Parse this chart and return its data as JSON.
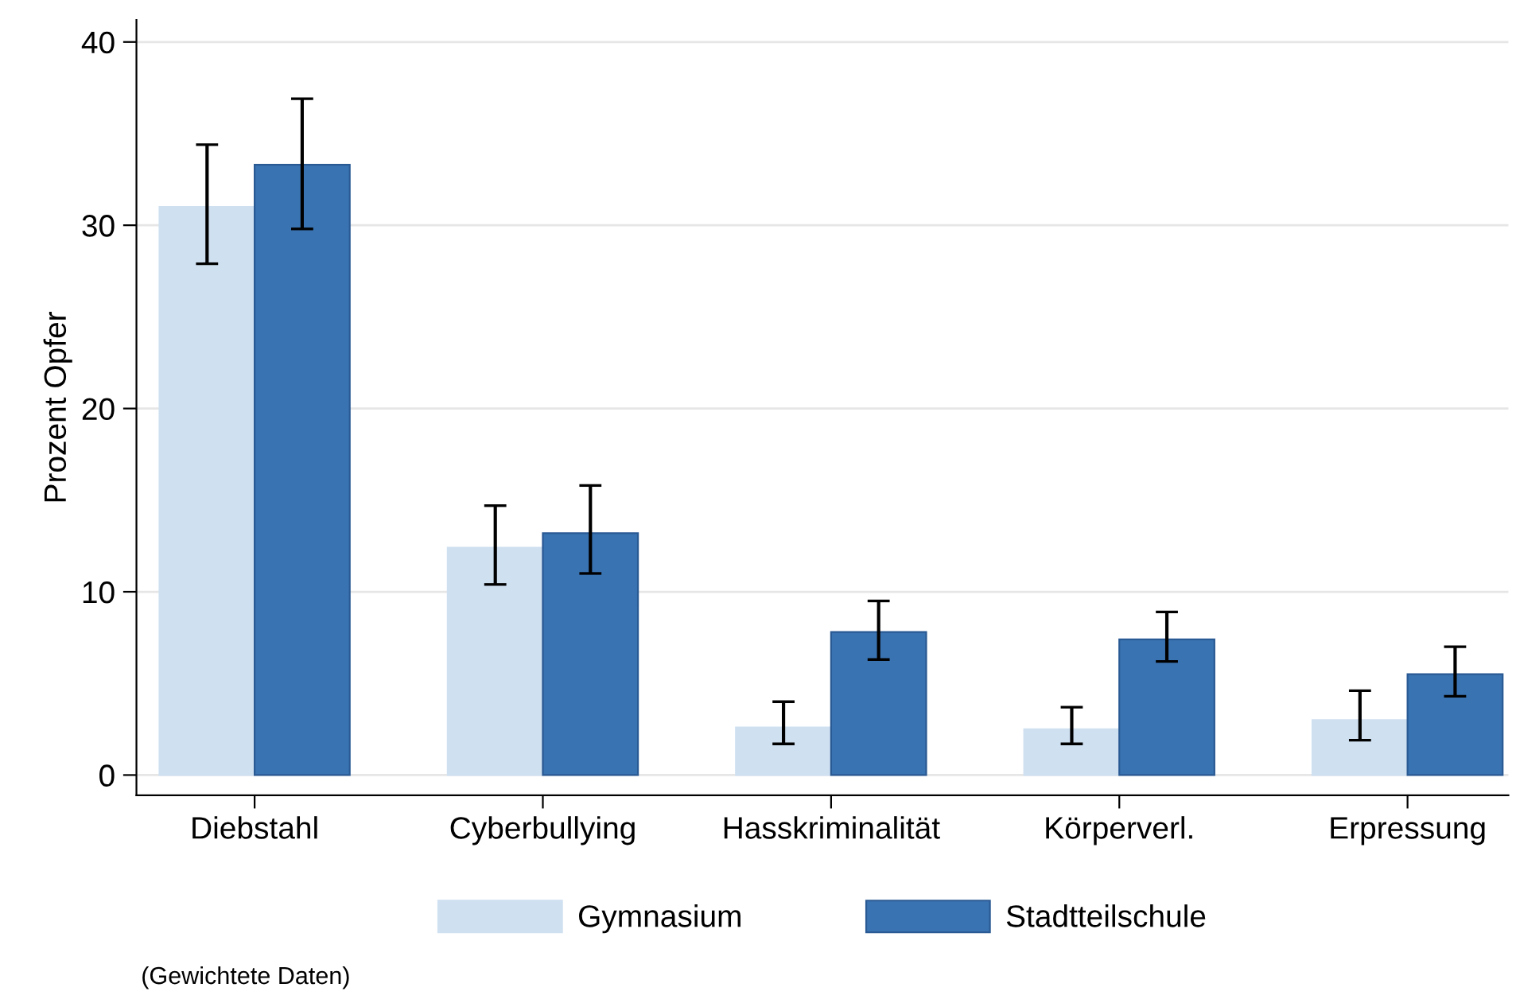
{
  "chart_data": {
    "type": "bar",
    "ylabel": "Prozent Opfer",
    "categories": [
      "Diebstahl",
      "Cyberbullying",
      "Hasskriminalität",
      "Körperverl.",
      "Erpressung"
    ],
    "series": [
      {
        "name": "Gymnasium",
        "color": "#cfe0f1",
        "values": [
          31.0,
          12.4,
          2.6,
          2.5,
          3.0
        ],
        "errors": [
          [
            27.9,
            34.4
          ],
          [
            10.4,
            14.7
          ],
          [
            1.7,
            4.0
          ],
          [
            1.7,
            3.7
          ],
          [
            1.9,
            4.6
          ]
        ]
      },
      {
        "name": "Stadtteilschule",
        "color": "#3a73b2",
        "values": [
          33.3,
          13.2,
          7.8,
          7.4,
          5.5
        ],
        "errors": [
          [
            29.8,
            36.9
          ],
          [
            11.0,
            15.8
          ],
          [
            6.3,
            9.5
          ],
          [
            6.2,
            8.9
          ],
          [
            4.3,
            7.0
          ]
        ]
      }
    ],
    "ylim": [
      -1.1,
      41.2
    ],
    "yticks": [
      0,
      10,
      20,
      30,
      40
    ],
    "grid": "y",
    "legend": "bottom",
    "annotations": [
      "(Gewichtete Daten)"
    ]
  }
}
